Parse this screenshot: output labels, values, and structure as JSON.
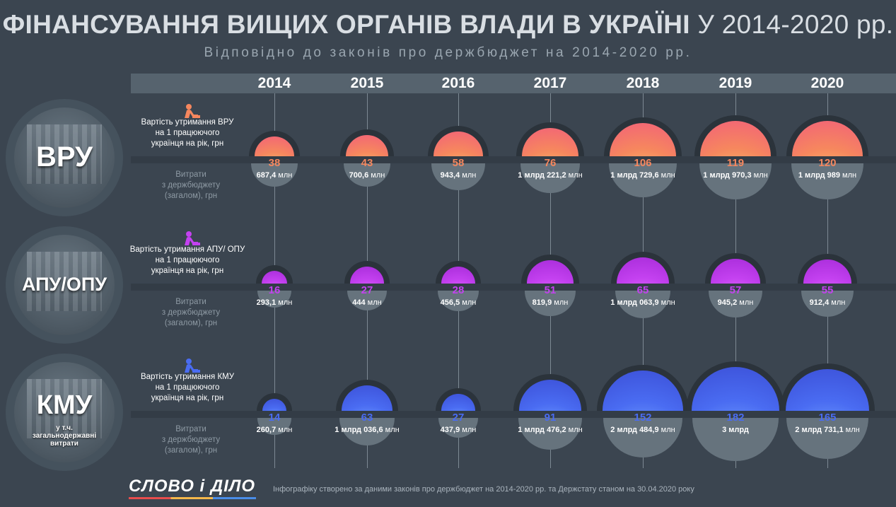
{
  "header": {
    "title_bold": "ФІНАНСУВАННЯ ВИЩИХ ОРГАНІВ ВЛАДИ В УКРАЇНІ",
    "title_regular": "У 2014-2020 рр.",
    "subtitle": "Відповідно до законів про держбюджет на 2014-2020 рр."
  },
  "colors": {
    "background": "#3b4550",
    "vru": "#f6875e",
    "apu": "#c441f0",
    "kmu": "#4a6cf2"
  },
  "entities": [
    {
      "label": "ВРУ",
      "icon": "worker-icon",
      "cost_label_lines": [
        "Вартість утримання ВРУ",
        "на 1 працюючого",
        "українця на рік, грн"
      ],
      "budget_label_lines": [
        "Витрати",
        "з держбюджету",
        "(загалом), грн"
      ]
    },
    {
      "label": "АПУ/ОПУ",
      "icon": "worker-icon",
      "cost_label_lines": [
        "Вартість утримання АПУ/ ОПУ",
        "на 1 працюючого",
        "українця на рік, грн"
      ],
      "budget_label_lines": [
        "Витрати",
        "з держбюджету",
        "(загалом), грн"
      ]
    },
    {
      "label": "КМУ",
      "sublabel_lines": [
        "у т.ч.",
        "загальнодержавні",
        "витрати"
      ],
      "icon": "worker-icon",
      "cost_label_lines": [
        "Вартість утримання КМУ",
        "на 1 працюючого",
        "українця на рік, грн"
      ],
      "budget_label_lines": [
        "Витрати",
        "з держбюджету",
        "(загалом), грн"
      ]
    }
  ],
  "chart_data": {
    "type": "bubble",
    "title": "ФІНАНСУВАННЯ ВИЩИХ ОРГАНІВ ВЛАДИ В УКРАЇНІ У 2014-2020 рр.",
    "subtitle": "Відповідно до законів про держбюджет на 2014-2020 рр.",
    "categories": [
      "2014",
      "2015",
      "2016",
      "2017",
      "2018",
      "2019",
      "2020"
    ],
    "series": [
      {
        "name": "ВРУ",
        "metric": "Вартість утримання ВРУ на 1 працюючого українця на рік, грн",
        "values": [
          38,
          43,
          58,
          76,
          106,
          119,
          120
        ],
        "budget_values_uah_mln": [
          687.4,
          700.6,
          943.4,
          1221.2,
          1729.6,
          1970.3,
          1989
        ],
        "budget_num": [
          "687,4",
          "700,6",
          "943,4",
          "1 млрд 221,2",
          "1 млрд 729,6",
          "1 млрд 970,3",
          "1 млрд 989"
        ],
        "budget_unit": [
          "млн",
          "млн",
          "млн",
          "млн",
          "млн",
          "млн",
          "млн"
        ]
      },
      {
        "name": "АПУ/ОПУ",
        "metric": "Вартість утримання АПУ/ ОПУ на 1 працюючого українця на рік, грн",
        "values": [
          16,
          27,
          28,
          51,
          65,
          57,
          55
        ],
        "budget_values_uah_mln": [
          293.1,
          444,
          456.5,
          819.9,
          1063.9,
          945.2,
          912.4
        ],
        "budget_num": [
          "293,1",
          "444",
          "456,5",
          "819,9",
          "1 млрд 063,9",
          "945,2",
          "912,4"
        ],
        "budget_unit": [
          "млн",
          "млн",
          "млн",
          "млн",
          "млн",
          "млн",
          "млн"
        ]
      },
      {
        "name": "КМУ",
        "metric": "Вартість утримання КМУ на 1 працюючого українця на рік, грн",
        "values": [
          14,
          63,
          27,
          91,
          152,
          182,
          165
        ],
        "budget_values_uah_mln": [
          260.7,
          1036.6,
          437.9,
          1476.2,
          2484.9,
          3000,
          2731.1
        ],
        "budget_num": [
          "260,7",
          "1 млрд 036,6",
          "437,9",
          "1 млрд 476,2",
          "2 млрд 484,9",
          "3 млрд",
          "2 млрд 731,1"
        ],
        "budget_unit": [
          "млн",
          "млн",
          "млн",
          "млн",
          "млн",
          "",
          "млн"
        ]
      }
    ]
  },
  "footer": {
    "logo": "СЛОВО і ДІЛО",
    "note": "Інфографіку створено за даними законів про держбюджет на 2014-2020 рр. та Держстату станом на 30.04.2020 року"
  }
}
